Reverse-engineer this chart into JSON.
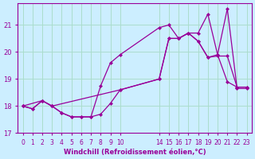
{
  "background_color": "#cceeff",
  "line_color": "#990099",
  "grid_color": "#aaddcc",
  "xlabel": "Windchill (Refroidissement éolien,°C)",
  "xlabel_color": "#990099",
  "tick_color": "#990099",
  "ylim": [
    17.0,
    21.8
  ],
  "yticks": [
    17,
    18,
    19,
    20,
    21
  ],
  "xtick_positions": [
    0,
    1,
    2,
    3,
    4,
    5,
    6,
    7,
    8,
    9,
    10,
    14,
    15,
    16,
    17,
    18,
    19,
    20,
    21,
    22,
    23
  ],
  "xtick_labels": [
    "0",
    "1",
    "2",
    "3",
    "4",
    "5",
    "6",
    "7",
    "8",
    "9",
    "10",
    "14",
    "15",
    "16",
    "17",
    "18",
    "19",
    "20",
    "21",
    "22",
    "23"
  ],
  "line1_x": [
    0,
    1,
    2,
    3,
    4,
    5,
    6,
    7,
    8,
    9,
    10,
    14,
    15,
    16,
    17,
    18,
    19,
    20,
    21,
    22,
    23
  ],
  "line1_y": [
    18.0,
    17.9,
    18.2,
    18.0,
    17.75,
    17.6,
    17.6,
    17.6,
    17.7,
    18.1,
    18.6,
    19.0,
    20.5,
    20.5,
    20.7,
    20.4,
    19.8,
    19.9,
    18.9,
    18.7,
    18.7
  ],
  "line2_x": [
    0,
    2,
    3,
    10,
    14,
    15,
    16,
    17,
    18,
    19,
    20,
    21,
    22,
    23
  ],
  "line2_y": [
    18.0,
    18.2,
    18.0,
    18.6,
    19.0,
    20.5,
    20.5,
    20.7,
    20.4,
    19.8,
    19.85,
    19.85,
    18.7,
    18.7
  ],
  "line3_x": [
    0,
    1,
    2,
    3,
    4,
    5,
    6,
    7,
    8,
    9,
    10,
    14,
    15,
    16,
    17,
    18,
    19,
    20,
    21,
    22,
    23
  ],
  "line3_y": [
    18.0,
    17.9,
    18.2,
    18.0,
    17.75,
    17.6,
    17.6,
    17.6,
    18.75,
    19.6,
    19.9,
    20.9,
    21.0,
    20.5,
    20.7,
    20.7,
    21.4,
    19.9,
    21.6,
    18.65,
    18.65
  ]
}
